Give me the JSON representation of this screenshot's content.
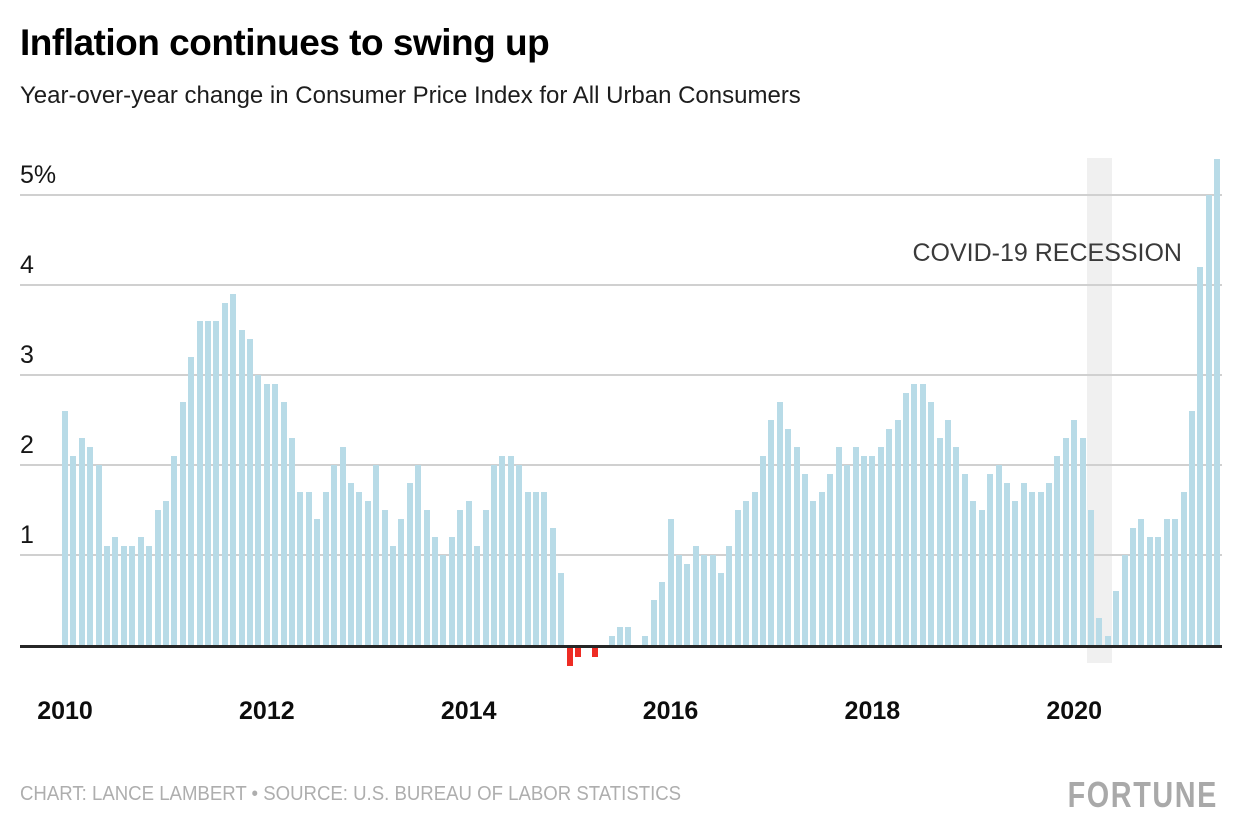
{
  "header": {
    "title": "Inflation continues to swing up",
    "subtitle": "Year-over-year change in Consumer Price Index for All Urban Consumers"
  },
  "footer": {
    "credit": "CHART: LANCE LAMBERT • SOURCE: U.S. BUREAU OF LABOR STATISTICS",
    "brand": "FORTUNE"
  },
  "colors": {
    "bar_positive": "#b8dbe7",
    "bar_negative": "#ee2c24",
    "gridline": "#d0d0d0",
    "axis": "#262626",
    "recession_band": "#f0f0f0",
    "annotation_text": "#3a3a3a",
    "credit_text": "#aeaeae",
    "brand_text": "#a9a9a9"
  },
  "chart_data": {
    "type": "bar",
    "title": "Inflation continues to swing up",
    "subtitle": "Year-over-year change in Consumer Price Index for All Urban Consumers",
    "unit": "percent, year-over-year change in CPI-U",
    "frequency": "monthly",
    "start": "2010-01",
    "end": "2021-06",
    "ylim": [
      -0.4,
      5.5
    ],
    "grid": true,
    "yticks": [
      {
        "value": 5,
        "label": "5%"
      },
      {
        "value": 4,
        "label": "4"
      },
      {
        "value": 3,
        "label": "3"
      },
      {
        "value": 2,
        "label": "2"
      },
      {
        "value": 1,
        "label": "1"
      }
    ],
    "xticks": [
      "2010",
      "2012",
      "2014",
      "2016",
      "2018",
      "2020"
    ],
    "annotation": "COVID-19 RECESSION",
    "recession_band": {
      "from": "2020-03",
      "to": "2020-05"
    },
    "values_by_year": {
      "2010": [
        2.6,
        2.1,
        2.3,
        2.2,
        2.0,
        1.1,
        1.2,
        1.1,
        1.1,
        1.2,
        1.1,
        1.5
      ],
      "2011": [
        1.6,
        2.1,
        2.7,
        3.2,
        3.6,
        3.6,
        3.6,
        3.8,
        3.9,
        3.5,
        3.4,
        3.0
      ],
      "2012": [
        2.9,
        2.9,
        2.7,
        2.3,
        1.7,
        1.7,
        1.4,
        1.7,
        2.0,
        2.2,
        1.8,
        1.7
      ],
      "2013": [
        1.6,
        2.0,
        1.5,
        1.1,
        1.4,
        1.8,
        2.0,
        1.5,
        1.2,
        1.0,
        1.2,
        1.5
      ],
      "2014": [
        1.6,
        1.1,
        1.5,
        2.0,
        2.1,
        2.1,
        2.0,
        1.7,
        1.7,
        1.7,
        1.3,
        0.8
      ],
      "2015": [
        -0.2,
        -0.1,
        0.0,
        -0.1,
        0.0,
        0.1,
        0.2,
        0.2,
        0.0,
        0.1,
        0.5,
        0.7
      ],
      "2016": [
        1.4,
        1.0,
        0.9,
        1.1,
        1.0,
        1.0,
        0.8,
        1.1,
        1.5,
        1.6,
        1.7,
        2.1
      ],
      "2017": [
        2.5,
        2.7,
        2.4,
        2.2,
        1.9,
        1.6,
        1.7,
        1.9,
        2.2,
        2.0,
        2.2,
        2.1
      ],
      "2018": [
        2.1,
        2.2,
        2.4,
        2.5,
        2.8,
        2.9,
        2.9,
        2.7,
        2.3,
        2.5,
        2.2,
        1.9
      ],
      "2019": [
        1.6,
        1.5,
        1.9,
        2.0,
        1.8,
        1.6,
        1.8,
        1.7,
        1.7,
        1.8,
        2.1,
        2.3
      ],
      "2020": [
        2.5,
        2.3,
        1.5,
        0.3,
        0.1,
        0.6,
        1.0,
        1.3,
        1.4,
        1.2,
        1.2,
        1.4
      ],
      "2021": [
        1.4,
        1.7,
        2.6,
        4.2,
        5.0,
        5.4
      ]
    }
  }
}
